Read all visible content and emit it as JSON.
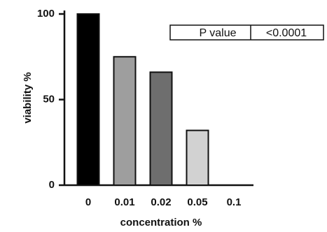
{
  "chart_data": {
    "type": "bar",
    "categories": [
      "0",
      "0.01",
      "0.02",
      "0.05",
      "0.1"
    ],
    "values": [
      100,
      75,
      66,
      32,
      0
    ],
    "colors": [
      "#000000",
      "#9e9e9e",
      "#6e6e6e",
      "#d2d2d2",
      "#ffffff"
    ],
    "xlabel": "concentration %",
    "ylabel": "viability %",
    "ylim": [
      0,
      100
    ],
    "yticks": [
      0,
      50,
      100
    ],
    "grid": false,
    "annotation_table": {
      "label": "P value",
      "value": "<0.0001",
      "placement": "top-right"
    }
  }
}
